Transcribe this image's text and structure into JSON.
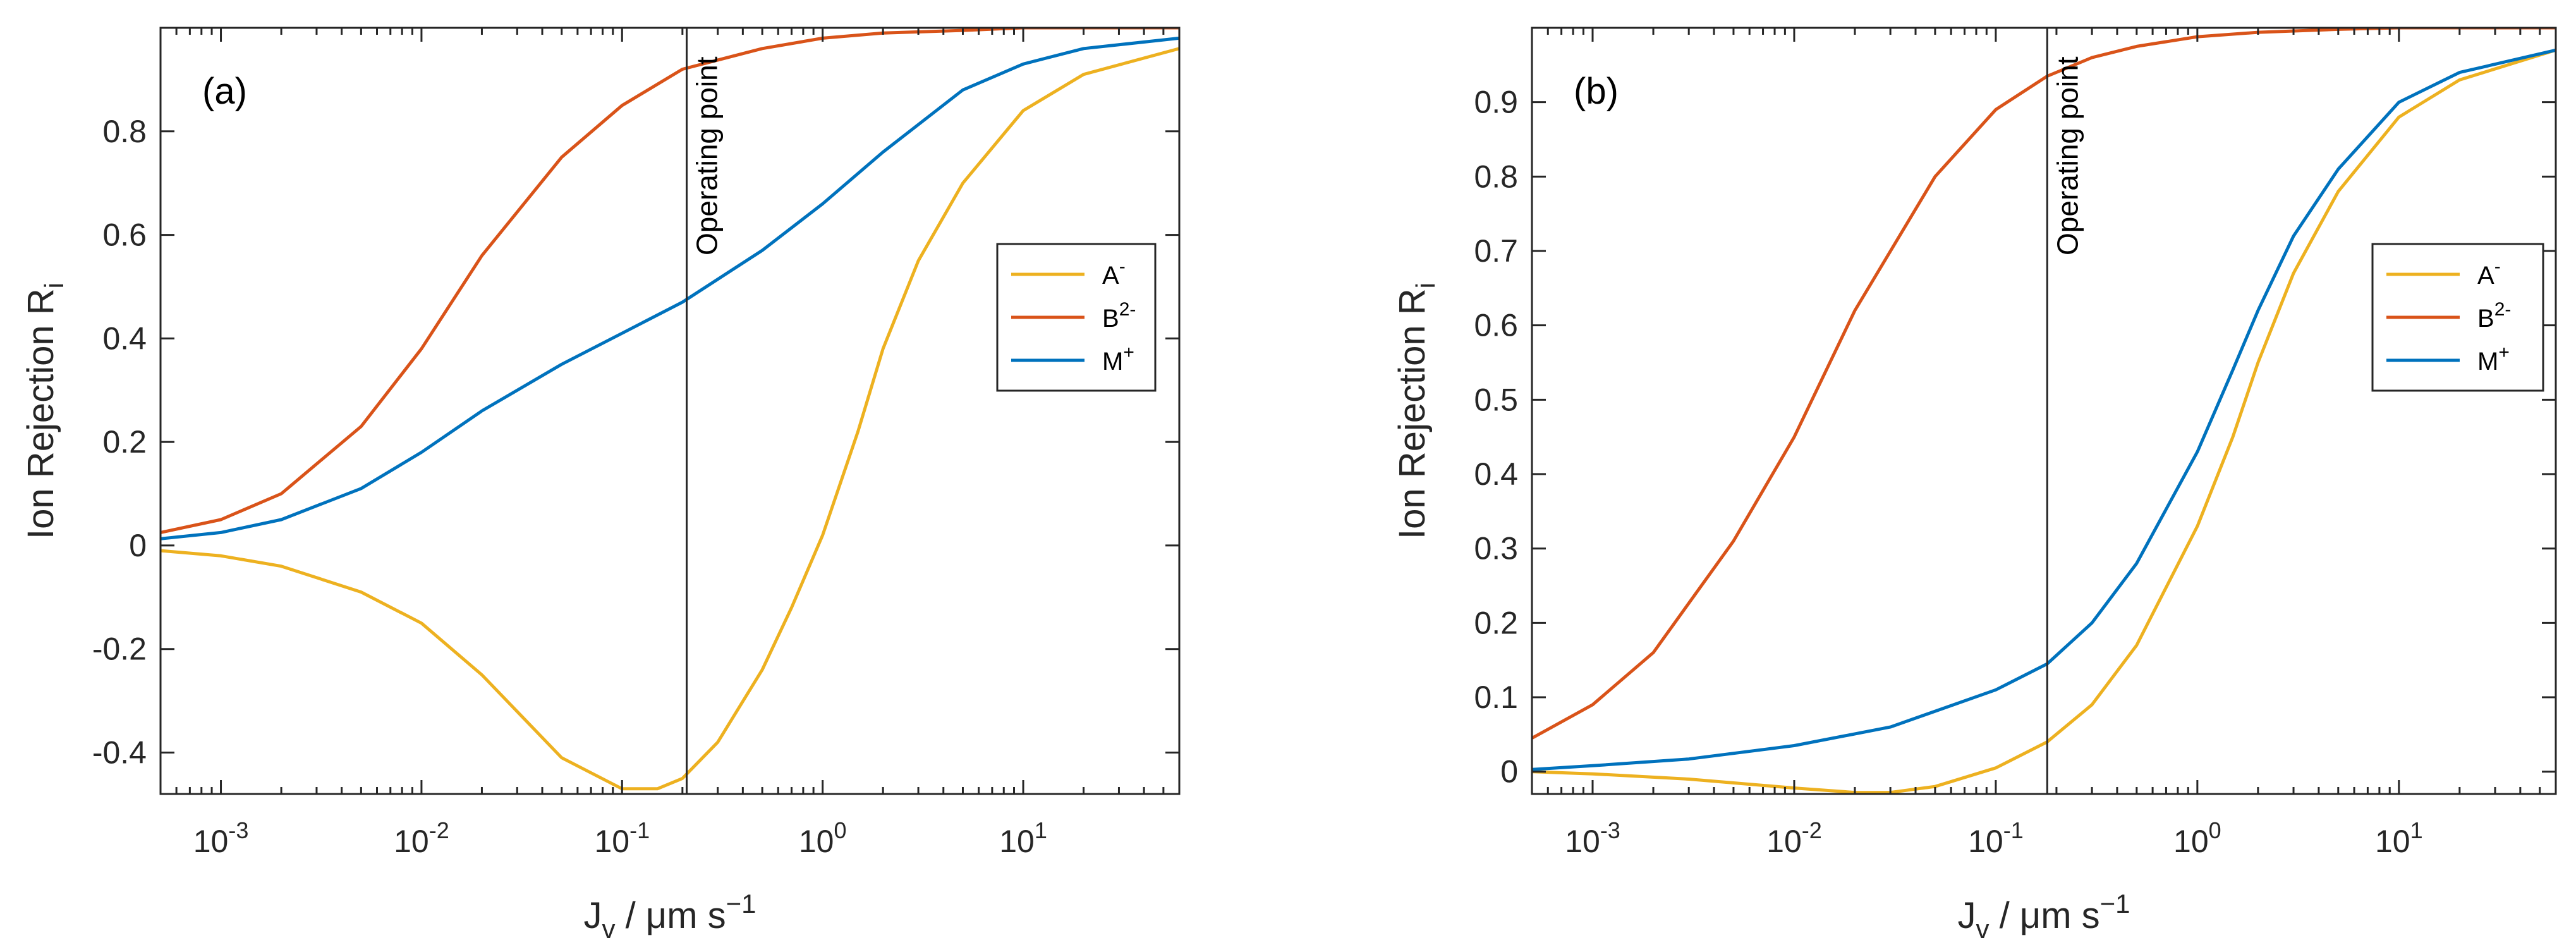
{
  "colors": {
    "A": "#EDB120",
    "B": "#D95319",
    "M": "#0072BD",
    "axis": "#262626"
  },
  "chart_data": [
    {
      "type": "line",
      "panel_label": "(a)",
      "xscale": "log",
      "xlim": [
        0.0005,
        60
      ],
      "ylim": [
        -0.48,
        1.0
      ],
      "xlabel": {
        "main": "J",
        "sub": "v",
        "rest": " / μm s",
        "sup": "−1"
      },
      "ylabel": {
        "main": "Ion Rejection R",
        "sub": "i"
      },
      "xticks": [
        {
          "value": 0.001,
          "base": "10",
          "exp": "-3"
        },
        {
          "value": 0.01,
          "base": "10",
          "exp": "-2"
        },
        {
          "value": 0.1,
          "base": "10",
          "exp": "-1"
        },
        {
          "value": 1,
          "base": "10",
          "exp": "0"
        },
        {
          "value": 10,
          "base": "10",
          "exp": "1"
        }
      ],
      "yticks": [
        {
          "value": -0.4,
          "label": "-0.4"
        },
        {
          "value": -0.2,
          "label": "-0.2"
        },
        {
          "value": 0,
          "label": "0"
        },
        {
          "value": 0.2,
          "label": "0.2"
        },
        {
          "value": 0.4,
          "label": "0.4"
        },
        {
          "value": 0.6,
          "label": "0.6"
        },
        {
          "value": 0.8,
          "label": "0.8"
        }
      ],
      "operating_point": {
        "x": 0.21,
        "label": "Operating point"
      },
      "legend": {
        "position": "right",
        "entries": [
          {
            "key": "A",
            "base": "A",
            "sup": "-"
          },
          {
            "key": "B",
            "base": "B",
            "sup": "2-"
          },
          {
            "key": "M",
            "base": "M",
            "sup": "+"
          }
        ]
      },
      "series": [
        {
          "name": "A-",
          "key": "A",
          "x": [
            0.0005,
            0.001,
            0.002,
            0.005,
            0.01,
            0.02,
            0.05,
            0.1,
            0.15,
            0.2,
            0.3,
            0.5,
            0.7,
            1,
            1.5,
            2,
            3,
            5,
            10,
            20,
            60
          ],
          "values": [
            -0.01,
            -0.02,
            -0.04,
            -0.09,
            -0.15,
            -0.25,
            -0.41,
            -0.47,
            -0.47,
            -0.45,
            -0.38,
            -0.24,
            -0.12,
            0.02,
            0.22,
            0.38,
            0.55,
            0.7,
            0.84,
            0.91,
            0.96
          ]
        },
        {
          "name": "B2-",
          "key": "B",
          "x": [
            0.0005,
            0.001,
            0.002,
            0.005,
            0.01,
            0.02,
            0.05,
            0.1,
            0.2,
            0.5,
            1,
            2,
            5,
            10,
            20,
            60
          ],
          "values": [
            0.025,
            0.05,
            0.1,
            0.23,
            0.38,
            0.56,
            0.75,
            0.85,
            0.92,
            0.96,
            0.98,
            0.99,
            0.995,
            1.0,
            1.0,
            1.0
          ]
        },
        {
          "name": "M+",
          "key": "M",
          "x": [
            0.0005,
            0.001,
            0.002,
            0.005,
            0.01,
            0.02,
            0.05,
            0.1,
            0.2,
            0.5,
            1,
            2,
            5,
            10,
            20,
            60
          ],
          "values": [
            0.013,
            0.025,
            0.05,
            0.11,
            0.18,
            0.26,
            0.35,
            0.41,
            0.47,
            0.57,
            0.66,
            0.76,
            0.88,
            0.93,
            0.96,
            0.98
          ]
        }
      ]
    },
    {
      "type": "line",
      "panel_label": "(b)",
      "xscale": "log",
      "xlim": [
        0.0005,
        60
      ],
      "ylim": [
        -0.03,
        1.0
      ],
      "xlabel": {
        "main": "J",
        "sub": "v",
        "rest": " / μm s",
        "sup": "−1"
      },
      "ylabel": {
        "main": "Ion Rejection R",
        "sub": "i"
      },
      "xticks": [
        {
          "value": 0.001,
          "base": "10",
          "exp": "-3"
        },
        {
          "value": 0.01,
          "base": "10",
          "exp": "-2"
        },
        {
          "value": 0.1,
          "base": "10",
          "exp": "-1"
        },
        {
          "value": 1,
          "base": "10",
          "exp": "0"
        },
        {
          "value": 10,
          "base": "10",
          "exp": "1"
        }
      ],
      "yticks": [
        {
          "value": 0,
          "label": "0"
        },
        {
          "value": 0.1,
          "label": "0.1"
        },
        {
          "value": 0.2,
          "label": "0.2"
        },
        {
          "value": 0.3,
          "label": "0.3"
        },
        {
          "value": 0.4,
          "label": "0.4"
        },
        {
          "value": 0.5,
          "label": "0.5"
        },
        {
          "value": 0.6,
          "label": "0.6"
        },
        {
          "value": 0.7,
          "label": "0.7"
        },
        {
          "value": 0.8,
          "label": "0.8"
        },
        {
          "value": 0.9,
          "label": "0.9"
        }
      ],
      "operating_point": {
        "x": 0.18,
        "label": "Operating point"
      },
      "legend": {
        "position": "right",
        "entries": [
          {
            "key": "A",
            "base": "A",
            "sup": "-"
          },
          {
            "key": "B",
            "base": "B",
            "sup": "2-"
          },
          {
            "key": "M",
            "base": "M",
            "sup": "+"
          }
        ]
      },
      "series": [
        {
          "name": "A-",
          "key": "A",
          "x": [
            0.0005,
            0.001,
            0.003,
            0.01,
            0.02,
            0.03,
            0.05,
            0.1,
            0.18,
            0.3,
            0.5,
            1,
            1.5,
            2,
            3,
            5,
            10,
            20,
            60
          ],
          "values": [
            0.0,
            -0.003,
            -0.01,
            -0.022,
            -0.028,
            -0.028,
            -0.02,
            0.005,
            0.04,
            0.09,
            0.17,
            0.33,
            0.45,
            0.55,
            0.67,
            0.78,
            0.88,
            0.93,
            0.97
          ]
        },
        {
          "name": "B2-",
          "key": "B",
          "x": [
            0.0005,
            0.001,
            0.002,
            0.005,
            0.01,
            0.02,
            0.05,
            0.1,
            0.18,
            0.3,
            0.5,
            1,
            2,
            5,
            10,
            20,
            60
          ],
          "values": [
            0.045,
            0.09,
            0.16,
            0.31,
            0.45,
            0.62,
            0.8,
            0.89,
            0.935,
            0.96,
            0.975,
            0.988,
            0.994,
            0.998,
            1.0,
            1.0,
            1.0
          ]
        },
        {
          "name": "M+",
          "key": "M",
          "x": [
            0.0005,
            0.001,
            0.003,
            0.01,
            0.03,
            0.1,
            0.18,
            0.3,
            0.5,
            1,
            1.5,
            2,
            3,
            5,
            10,
            20,
            60
          ],
          "values": [
            0.003,
            0.008,
            0.017,
            0.035,
            0.06,
            0.11,
            0.145,
            0.2,
            0.28,
            0.43,
            0.54,
            0.62,
            0.72,
            0.81,
            0.9,
            0.94,
            0.97
          ]
        }
      ]
    }
  ]
}
